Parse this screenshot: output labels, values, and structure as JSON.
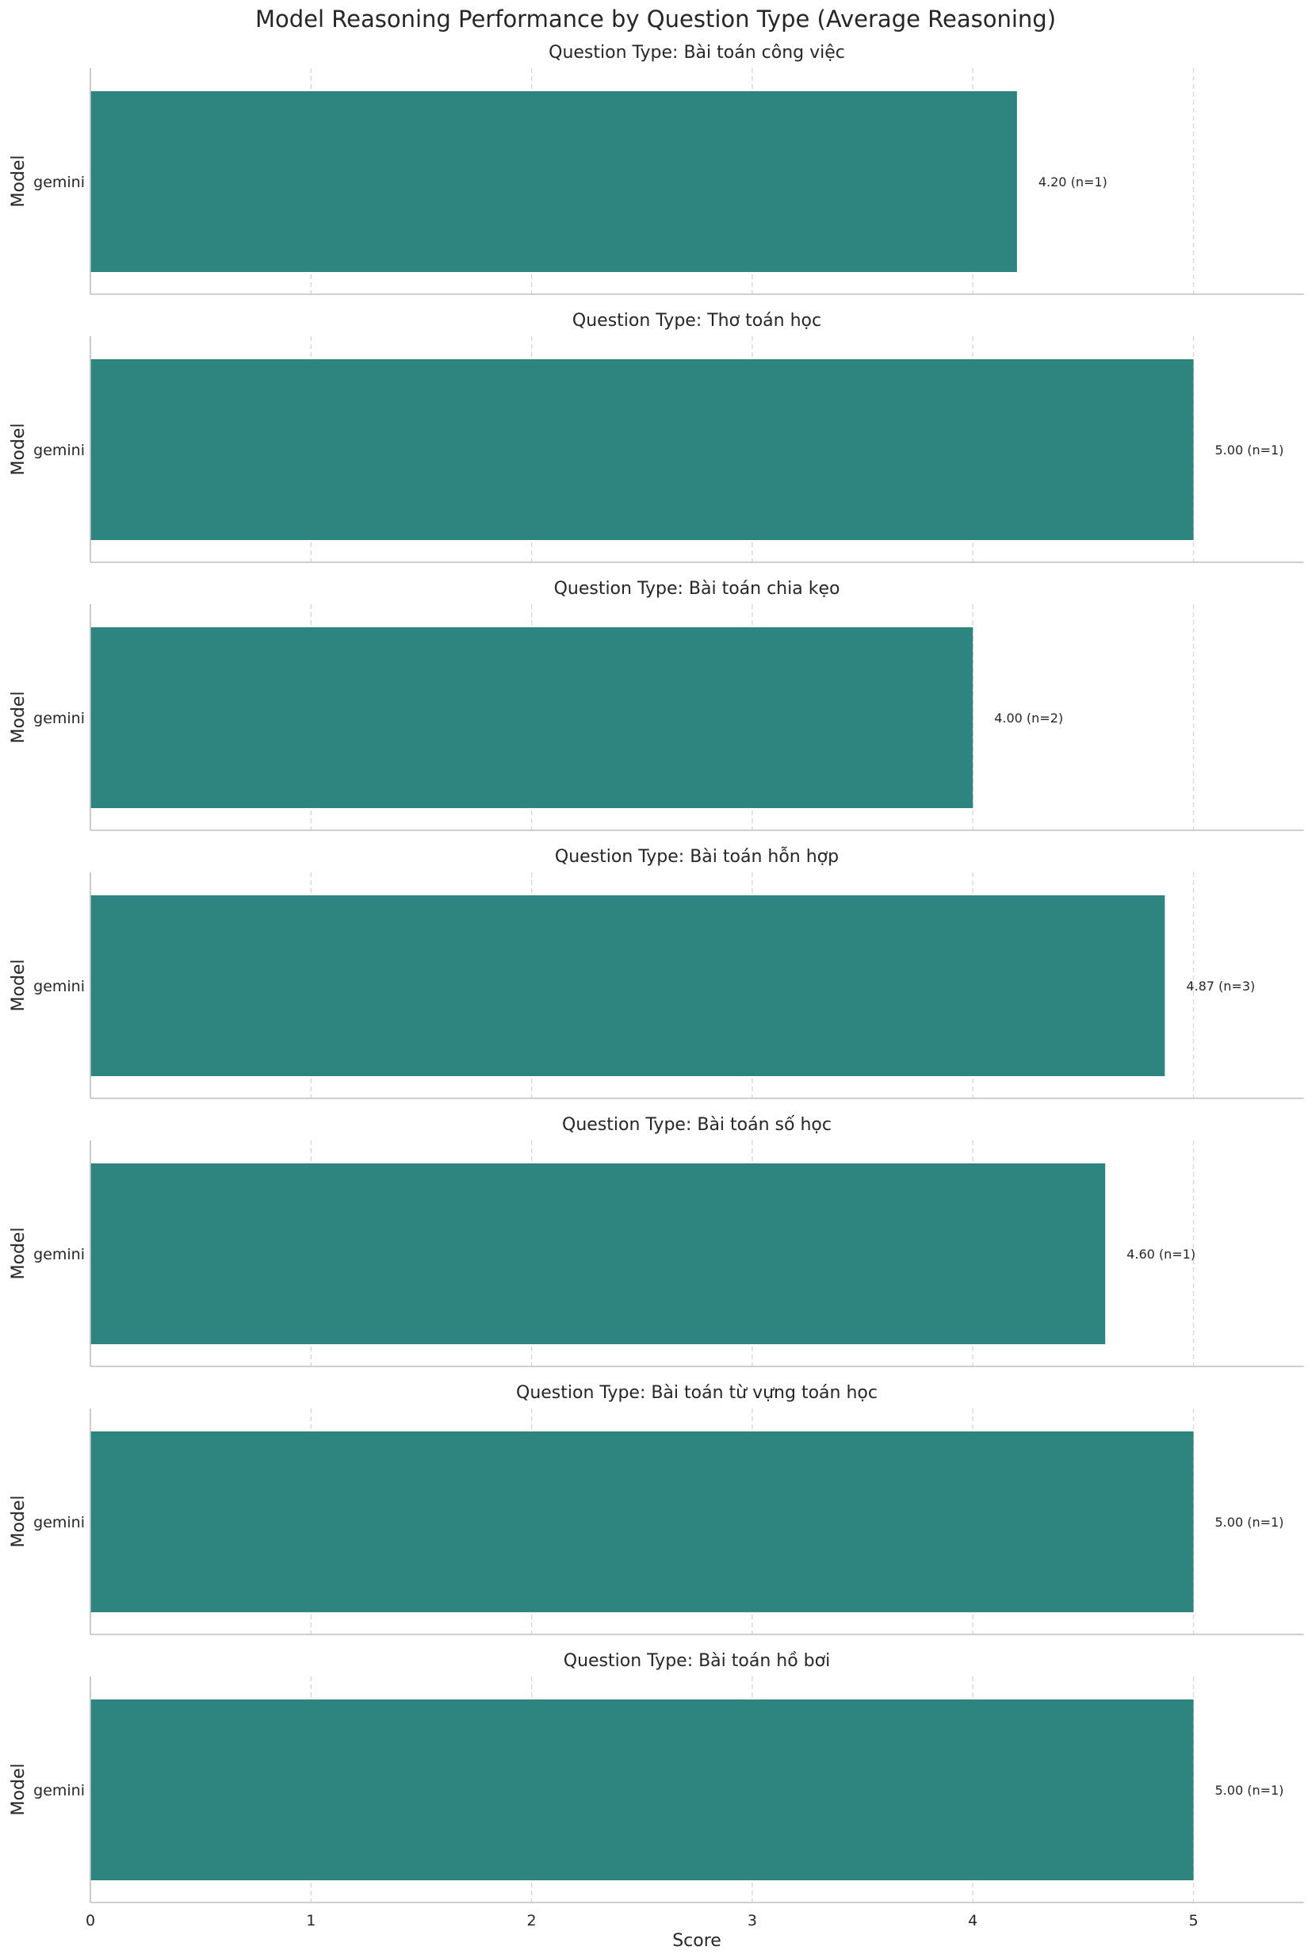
{
  "chart_data": {
    "type": "bar",
    "orientation": "horizontal",
    "title": "Model Reasoning Performance by Question Type (Average Reasoning)",
    "xlabel": "Score",
    "ylabel": "Model",
    "xlim": [
      0,
      5.5
    ],
    "xticks": [
      "0",
      "1",
      "2",
      "3",
      "4",
      "5"
    ],
    "grid": "x-dashed",
    "bar_color": "#2e847e",
    "panels": [
      {
        "title": "Question Type: Bài toán công việc",
        "category": "gemini",
        "value": 4.2,
        "label": "4.20 (n=1)"
      },
      {
        "title": "Question Type: Thơ toán học",
        "category": "gemini",
        "value": 5.0,
        "label": "5.00 (n=1)"
      },
      {
        "title": "Question Type: Bài toán chia kẹo",
        "category": "gemini",
        "value": 4.0,
        "label": "4.00 (n=2)"
      },
      {
        "title": "Question Type: Bài toán hỗn hợp",
        "category": "gemini",
        "value": 4.87,
        "label": "4.87 (n=3)"
      },
      {
        "title": "Question Type: Bài toán số học",
        "category": "gemini",
        "value": 4.6,
        "label": "4.60 (n=1)"
      },
      {
        "title": "Question Type: Bài toán từ vựng toán học",
        "category": "gemini",
        "value": 5.0,
        "label": "5.00 (n=1)"
      },
      {
        "title": "Question Type: Bài toán hồ bơi",
        "category": "gemini",
        "value": 5.0,
        "label": "5.00 (n=1)"
      }
    ]
  }
}
